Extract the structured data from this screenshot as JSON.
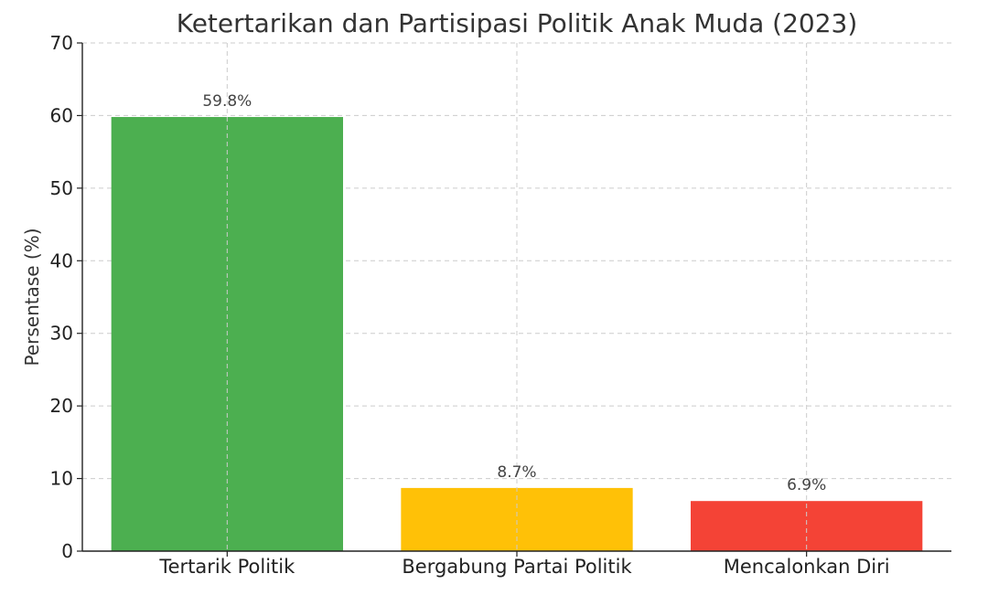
{
  "chart_data": {
    "type": "bar",
    "title": "Ketertarikan dan Partisipasi Politik Anak Muda (2023)",
    "xlabel": "",
    "ylabel": "Persentase (%)",
    "categories": [
      "Tertarik Politik",
      "Bergabung Partai Politik",
      "Mencalonkan Diri"
    ],
    "values": [
      59.8,
      8.7,
      6.9
    ],
    "data_labels": [
      "59.8%",
      "8.7%",
      "6.9%"
    ],
    "colors": [
      "#4caf50",
      "#ffc107",
      "#f44336"
    ],
    "ylim": [
      0,
      70
    ],
    "yticks": [
      0,
      10,
      20,
      30,
      40,
      50,
      60,
      70
    ],
    "grid": true,
    "legend": "none"
  }
}
